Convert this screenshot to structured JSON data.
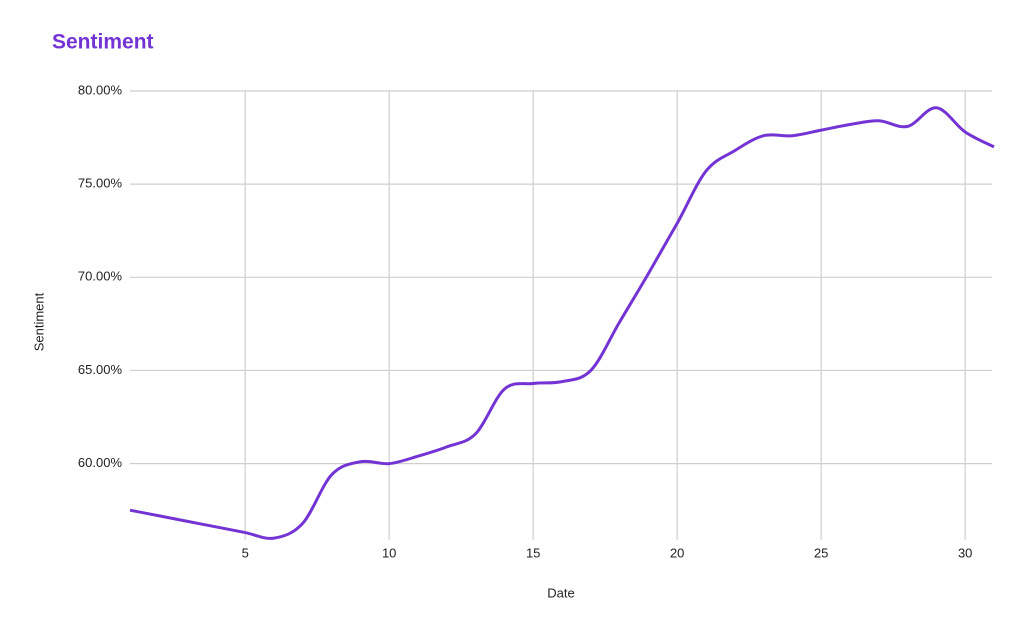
{
  "chart_data": {
    "type": "line",
    "title": "Sentiment",
    "x_label": "Date",
    "y_label": "Sentiment",
    "x": [
      1,
      2,
      3,
      4,
      5,
      6,
      7,
      8,
      9,
      10,
      11,
      12,
      13,
      14,
      15,
      16,
      17,
      18,
      19,
      20,
      21,
      22,
      23,
      24,
      25,
      26,
      27,
      28,
      29,
      30,
      31
    ],
    "series": [
      {
        "name": "Sentiment",
        "color": "#7434d4",
        "values": [
          57.5,
          57.2,
          56.9,
          56.6,
          56.3,
          56.0,
          56.8,
          59.4,
          60.1,
          60.0,
          60.4,
          60.9,
          61.6,
          64.0,
          64.3,
          64.4,
          65.0,
          67.6,
          70.2,
          72.9,
          75.7,
          76.8,
          77.6,
          77.6,
          77.9,
          78.2,
          78.4,
          78.1,
          79.1,
          77.8,
          77.0
        ]
      }
    ],
    "xlim": [
      1,
      31
    ],
    "xticks": [
      5,
      10,
      15,
      20,
      25,
      30
    ],
    "ylim": [
      55.9,
      80
    ],
    "yticks": [
      {
        "value": 60,
        "label": "60.00%"
      },
      {
        "value": 65,
        "label": "65.00%"
      },
      {
        "value": 70,
        "label": "70.00%"
      },
      {
        "value": 75,
        "label": "75.00%"
      },
      {
        "value": 80,
        "label": "80.00%"
      }
    ],
    "grid": true
  }
}
